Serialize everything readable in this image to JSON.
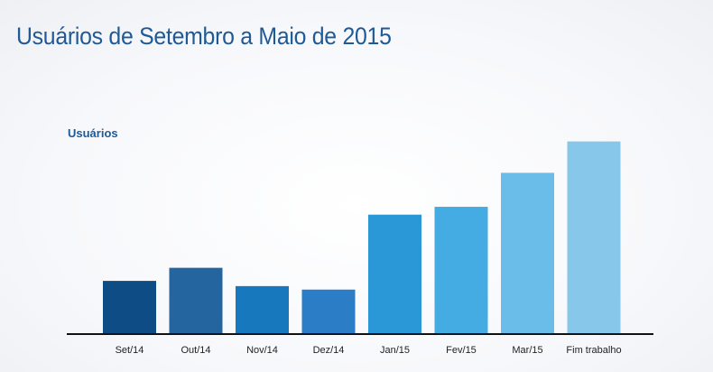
{
  "title": "Usuários de Setembro a Maio de 2015",
  "chart_data": {
    "type": "bar",
    "title": "Usuários de Setembro a Maio de 2015",
    "ylabel": "Usuários",
    "categories": [
      "Set/14",
      "Out/14",
      "Nov/14",
      "Dez/14",
      "Jan/15",
      "Fev/15",
      "Mar/15",
      "Fim trabalho"
    ],
    "values": [
      60,
      75,
      54,
      50,
      136,
      145,
      184,
      220
    ],
    "ylim": [
      0,
      230
    ],
    "grid": false,
    "legend": "none",
    "colors": [
      "#0e4c85",
      "#2465a0",
      "#1878be",
      "#2b7dc6",
      "#2a97d7",
      "#45abe3",
      "#6bbde9",
      "#86c7ea"
    ],
    "axis_color": "#111111"
  }
}
